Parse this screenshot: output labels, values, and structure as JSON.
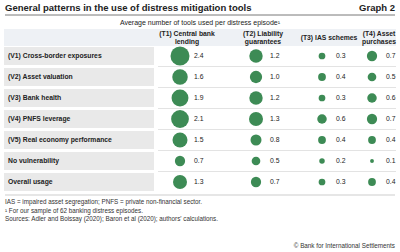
{
  "chart_data": {
    "type": "bubble",
    "title": "General patterns in the use of distress mitigation tools",
    "graph_label": "Graph 2",
    "subtitle": "Average number of tools used per distress episode¹",
    "categories": [
      "(V1) Cross-border exposures",
      "(V2) Asset valuation",
      "(V3) Bank health",
      "(V4) PNFS leverage",
      "(V5) Real economy performance",
      "No vulnerability",
      "Overall usage"
    ],
    "series": [
      {
        "name": "(T1) Central bank lending",
        "color": "#3d8b55",
        "values": [
          2.4,
          1.6,
          1.9,
          2.1,
          1.5,
          0.7,
          1.3
        ],
        "value_labels": [
          "2.4",
          "1.6",
          "1.9",
          "2.1",
          "1.5",
          "0.7",
          "1.3"
        ]
      },
      {
        "name": "(T2) Liability guarantees",
        "color": "#3d8b55",
        "values": [
          1.2,
          1.0,
          1.2,
          1.3,
          0.8,
          0.5,
          0.7
        ],
        "value_labels": [
          "1.2",
          "1.0",
          "1.2",
          "1.3",
          "0.8",
          "0.5",
          "0.7"
        ]
      },
      {
        "name": "(T3) IAS schemes",
        "color": "#3d8b55",
        "values": [
          0.3,
          0.4,
          0.3,
          0.6,
          0.4,
          0.2,
          0.3
        ],
        "value_labels": [
          "0.3",
          "0.4",
          "0.3",
          "0.6",
          "0.4",
          "0.2",
          "0.3"
        ]
      },
      {
        "name": "(T4) Asset purchases",
        "color": "#3d8b55",
        "values": [
          0.7,
          0.5,
          0.6,
          0.7,
          0.4,
          0.1,
          0.4
        ],
        "value_labels": [
          "0.7",
          "0.5",
          "0.6",
          "0.7",
          "0.4",
          "0.1",
          "0.4"
        ]
      }
    ],
    "data_labels": true,
    "notes": [
      "IAS = impaired asset segregation; PNFS = private non-financial sector.",
      "¹ For our sample of 62 banking distress episodes.",
      "Sources: Adler and Boissay (2020); Baron et al (2020); authors' calculations."
    ],
    "copyright": "© Bank for International Settlements"
  }
}
